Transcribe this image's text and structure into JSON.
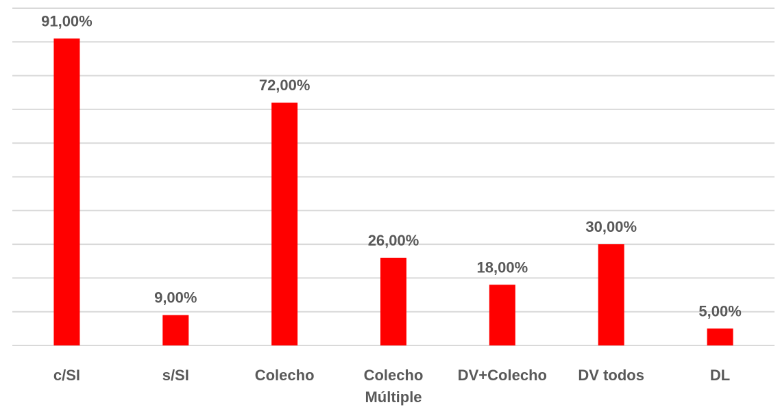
{
  "chart_data": {
    "type": "bar",
    "categories": [
      "c/SI",
      "s/SI",
      "Colecho",
      "Colecho Múltiple",
      "DV+Colecho",
      "DV todos",
      "DL"
    ],
    "category_lines": [
      [
        "c/SI"
      ],
      [
        "s/SI"
      ],
      [
        "Colecho"
      ],
      [
        "Colecho",
        "Múltiple"
      ],
      [
        "DV+Colecho"
      ],
      [
        "DV todos"
      ],
      [
        "DL"
      ]
    ],
    "values": [
      91,
      9,
      72,
      26,
      18,
      30,
      5
    ],
    "data_labels": [
      "91,00%",
      "9,00%",
      "72,00%",
      "26,00%",
      "18,00%",
      "30,00%",
      "5,00%"
    ],
    "ylim": [
      0,
      100
    ],
    "y_unit": "%",
    "grid": true,
    "bar_color": "#ff0000",
    "grid_color": "#d9d9d9",
    "label_color": "#595959",
    "title": "",
    "xlabel": "",
    "ylabel": ""
  }
}
